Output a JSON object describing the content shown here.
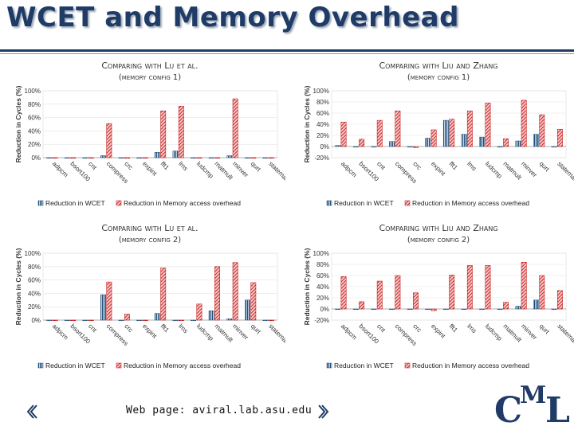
{
  "slide": {
    "title": "WCET and Memory Overhead",
    "footer": "Web page:  aviral.lab.asu.edu",
    "logo_text": "CML",
    "colors": {
      "title": "#1f3b66",
      "wcet": "#1f4e79",
      "memory": "#c00000"
    }
  },
  "chart_data": [
    {
      "type": "bar",
      "title": "Comparing with Lu et al.(memory config 1)",
      "ylabel": "Reduction in Cycles (%)",
      "ylim": [
        0,
        100
      ],
      "yticks": [
        "100%",
        "80%",
        "60%",
        "40%",
        "20%",
        "0%"
      ],
      "categories": [
        "adpcm",
        "bsort100",
        "cnt",
        "compress",
        "crc",
        "expint",
        "fft1",
        "lms",
        "ludcmp",
        "matmult",
        "minver",
        "qurt",
        "statemate"
      ],
      "series": [
        {
          "name": "Reduction in WCET",
          "color": "#1f4e79",
          "values": [
            0,
            0,
            0,
            3,
            0,
            0,
            8,
            10,
            0,
            0,
            3,
            0,
            0
          ]
        },
        {
          "name": "Reduction in Memory access overhead",
          "color": "#c00000",
          "values": [
            0,
            0,
            0,
            51,
            0,
            0,
            70,
            77,
            0,
            0,
            88,
            0,
            0
          ]
        }
      ],
      "legend": "bottom"
    },
    {
      "type": "bar",
      "title": "Comparing with Liu and Zhang (memory config 1)",
      "ylabel": "Reduction in Cycles (%)",
      "ylim": [
        -20,
        100
      ],
      "yticks": [
        "100%",
        "80%",
        "60%",
        "40%",
        "20%",
        "0%",
        "-20%"
      ],
      "categories": [
        "adpcm",
        "bsort100",
        "cnt",
        "compress",
        "crc",
        "expint",
        "fft1",
        "lms",
        "ludcmp",
        "matmult",
        "minver",
        "qurt",
        "statemate"
      ],
      "series": [
        {
          "name": "Reduction in WCET",
          "color": "#1f4e79",
          "values": [
            2,
            0,
            0,
            9,
            0,
            15,
            47,
            22,
            17,
            0,
            10,
            22,
            0
          ]
        },
        {
          "name": "Reduction in Memory access overhead",
          "color": "#c00000",
          "values": [
            44,
            13,
            47,
            64,
            -2,
            30,
            49,
            64,
            78,
            14,
            83,
            57,
            31
          ]
        }
      ],
      "legend": "bottom"
    },
    {
      "type": "bar",
      "title": "Comparing with Lu et al. (memory config 2)",
      "ylabel": "Reduction in Cycles (%)",
      "ylim": [
        0,
        100
      ],
      "yticks": [
        "100%",
        "80%",
        "60%",
        "40%",
        "20%",
        "0%"
      ],
      "categories": [
        "adpcm",
        "bsort100",
        "cnt",
        "compress",
        "crc",
        "expint",
        "fft1",
        "lms",
        "ludcmp",
        "matmult",
        "minver",
        "qurt",
        "statemate"
      ],
      "series": [
        {
          "name": "Reduction in WCET",
          "color": "#1f4e79",
          "values": [
            0,
            0,
            0,
            38,
            0,
            0,
            10,
            0,
            0,
            14,
            2,
            30,
            0
          ]
        },
        {
          "name": "Reduction in Memory access overhead",
          "color": "#c00000",
          "values": [
            0,
            0,
            0,
            57,
            9,
            0,
            78,
            0,
            24,
            80,
            86,
            56,
            0
          ]
        }
      ],
      "legend": "bottom"
    },
    {
      "type": "bar",
      "title": "Comparing with Liu and Zhang (memory config 2)",
      "ylabel": "Reduction in Cycles (%)",
      "ylim": [
        -20,
        100
      ],
      "yticks": [
        "100%",
        "80%",
        "60%",
        "40%",
        "20%",
        "0%",
        "-20%"
      ],
      "categories": [
        "adpcm",
        "bsort100",
        "cnt",
        "compress",
        "crc",
        "expint",
        "fft1",
        "lms",
        "ludcmp",
        "matmult",
        "minver",
        "qurt",
        "statemate"
      ],
      "series": [
        {
          "name": "Reduction in WCET",
          "color": "#1f4e79",
          "values": [
            0,
            0,
            0,
            0,
            0,
            0,
            0,
            0,
            0,
            0,
            5,
            16,
            0
          ]
        },
        {
          "name": "Reduction in Memory access overhead",
          "color": "#c00000",
          "values": [
            58,
            13,
            50,
            60,
            29,
            -3,
            61,
            78,
            78,
            12,
            84,
            60,
            33
          ]
        }
      ],
      "legend": "bottom"
    }
  ]
}
